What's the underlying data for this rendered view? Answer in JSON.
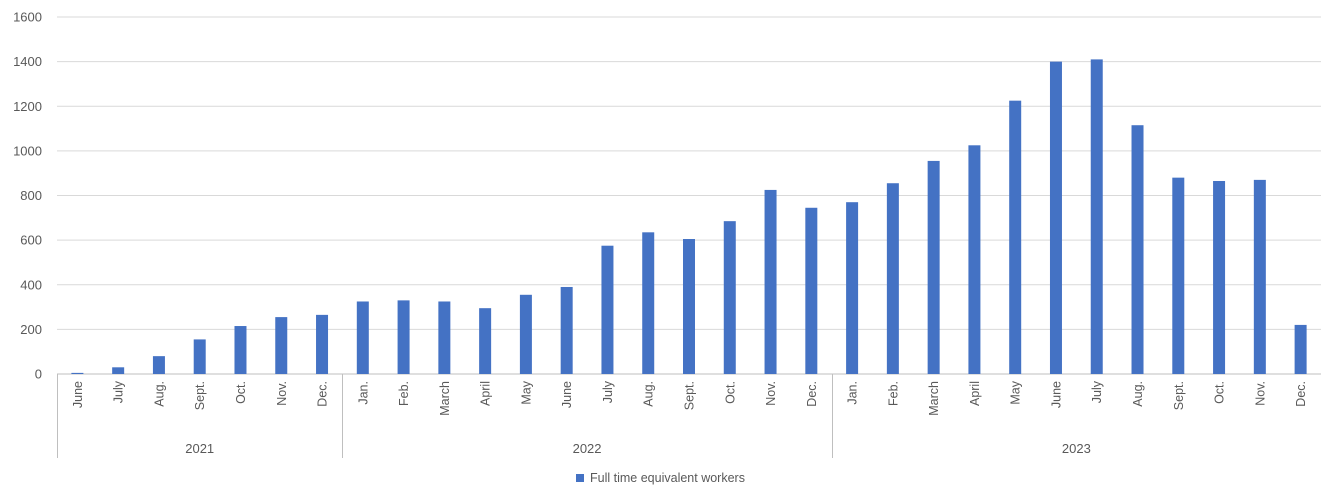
{
  "chart_data": {
    "type": "bar",
    "title": "",
    "xlabel": "",
    "ylabel": "",
    "ylim": [
      0,
      1600
    ],
    "yticks": [
      0,
      200,
      400,
      600,
      800,
      1000,
      1200,
      1400,
      1600
    ],
    "grid": true,
    "legend_position": "bottom",
    "bar_color": "#4472c4",
    "categories": [
      "June",
      "July",
      "Aug.",
      "Sept.",
      "Oct.",
      "Nov.",
      "Dec.",
      "Jan.",
      "Feb.",
      "March",
      "April",
      "May",
      "June",
      "July",
      "Aug.",
      "Sept.",
      "Oct.",
      "Nov.",
      "Dec.",
      "Jan.",
      "Feb.",
      "March",
      "April",
      "May",
      "June",
      "July",
      "Aug.",
      "Sept.",
      "Oct.",
      "Nov.",
      "Dec."
    ],
    "groups": [
      {
        "label": "2021",
        "count": 7
      },
      {
        "label": "2022",
        "count": 12
      },
      {
        "label": "2023",
        "count": 12
      }
    ],
    "series": [
      {
        "name": "Full time equivalent workers",
        "values": [
          5,
          30,
          80,
          155,
          215,
          255,
          265,
          325,
          330,
          325,
          295,
          355,
          390,
          575,
          635,
          605,
          685,
          825,
          745,
          770,
          855,
          955,
          1025,
          1225,
          1400,
          1410,
          1115,
          880,
          865,
          870,
          220
        ]
      }
    ]
  }
}
